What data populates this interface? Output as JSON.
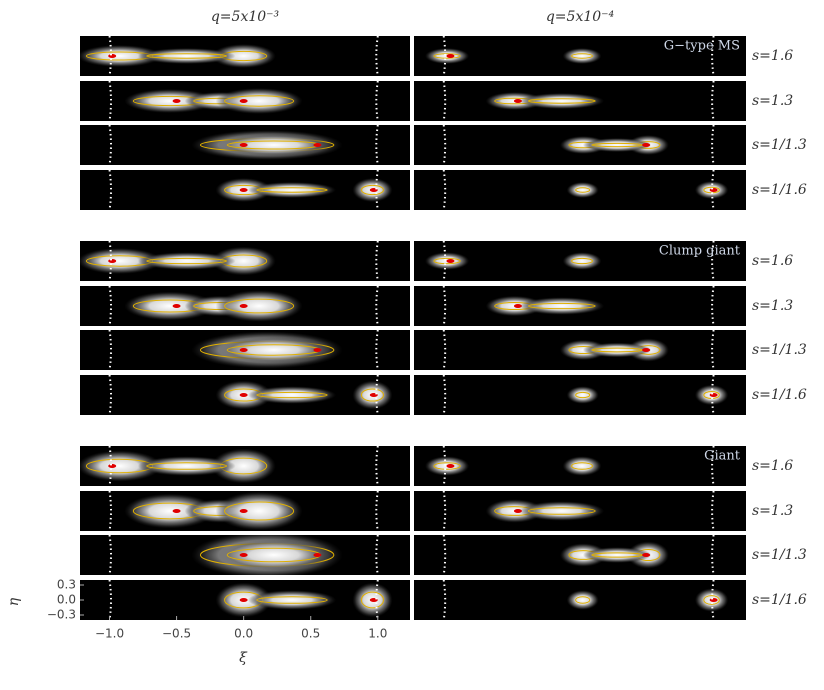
{
  "columns": [
    "q=5x10⁻³",
    "q=5x10⁻⁴"
  ],
  "groups": [
    {
      "label": "G−type MS",
      "rows": [
        "s=1.6",
        "s=1.3",
        "s=1/1.3",
        "s=1/1.6"
      ]
    },
    {
      "label": "Clump giant",
      "rows": [
        "s=1.6",
        "s=1.3",
        "s=1/1.3",
        "s=1/1.6"
      ]
    },
    {
      "label": "Giant",
      "rows": [
        "s=1.6",
        "s=1.3",
        "s=1/1.3",
        "s=1/1.6"
      ]
    }
  ],
  "x_axis": {
    "label": "ξ",
    "lim": [
      -1.22,
      1.24
    ],
    "ticks": [
      {
        "value": -1,
        "label": "−1.0"
      },
      {
        "value": -0.5,
        "label": "−0.5"
      },
      {
        "value": 0,
        "label": "0.0"
      },
      {
        "value": 0.5,
        "label": "0.5"
      },
      {
        "value": 1,
        "label": "1.0"
      }
    ]
  },
  "y_axis": {
    "label": "η",
    "lim": [
      -0.4,
      0.4
    ],
    "ticks": [
      0.3,
      {
        "value": 0,
        "label": "0.0"
      },
      {
        "value": -0.3,
        "label": "−0.3"
      }
    ]
  }
}
